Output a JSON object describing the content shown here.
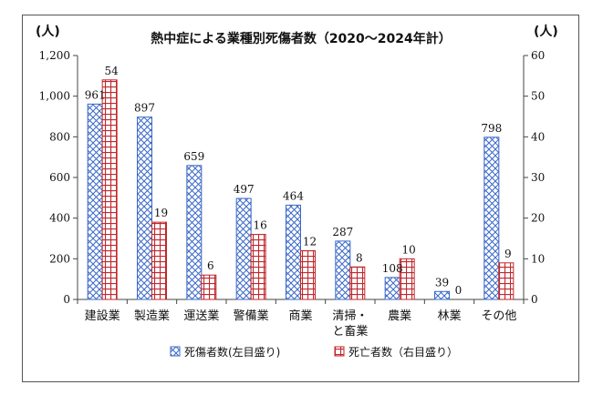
{
  "chart_data": {
    "type": "bar",
    "title": "熱中症による業種別死傷者数（2020～2024年計）",
    "categories": [
      "建設業",
      "製造業",
      "運送業",
      "警備業",
      "商業",
      "清掃・\nと畜業",
      "農業",
      "林業",
      "その他"
    ],
    "series": [
      {
        "name": "死傷者数(左目盛り)",
        "axis": "left",
        "pattern": "diamond-crosshatch",
        "color": "#3366cc",
        "values": [
          961,
          897,
          659,
          497,
          464,
          287,
          108,
          39,
          798
        ]
      },
      {
        "name": "死亡者数（右目盛り）",
        "axis": "right",
        "pattern": "grid",
        "color": "#c0282d",
        "values": [
          54,
          19,
          6,
          16,
          12,
          8,
          10,
          0,
          9
        ]
      }
    ],
    "y_left": {
      "unit_label": "(人)",
      "ylim": [
        0,
        1200
      ],
      "ticks": [
        0,
        200,
        400,
        600,
        800,
        1000,
        1200
      ],
      "tick_labels": [
        "0",
        "200",
        "400",
        "600",
        "800",
        "1,000",
        "1,200"
      ]
    },
    "y_right": {
      "unit_label": "(人)",
      "ylim": [
        0,
        60
      ],
      "ticks": [
        0,
        10,
        20,
        30,
        40,
        50,
        60
      ],
      "tick_labels": [
        "0",
        "10",
        "20",
        "30",
        "40",
        "50",
        "60"
      ]
    },
    "grid": false,
    "legend_position": "bottom"
  }
}
